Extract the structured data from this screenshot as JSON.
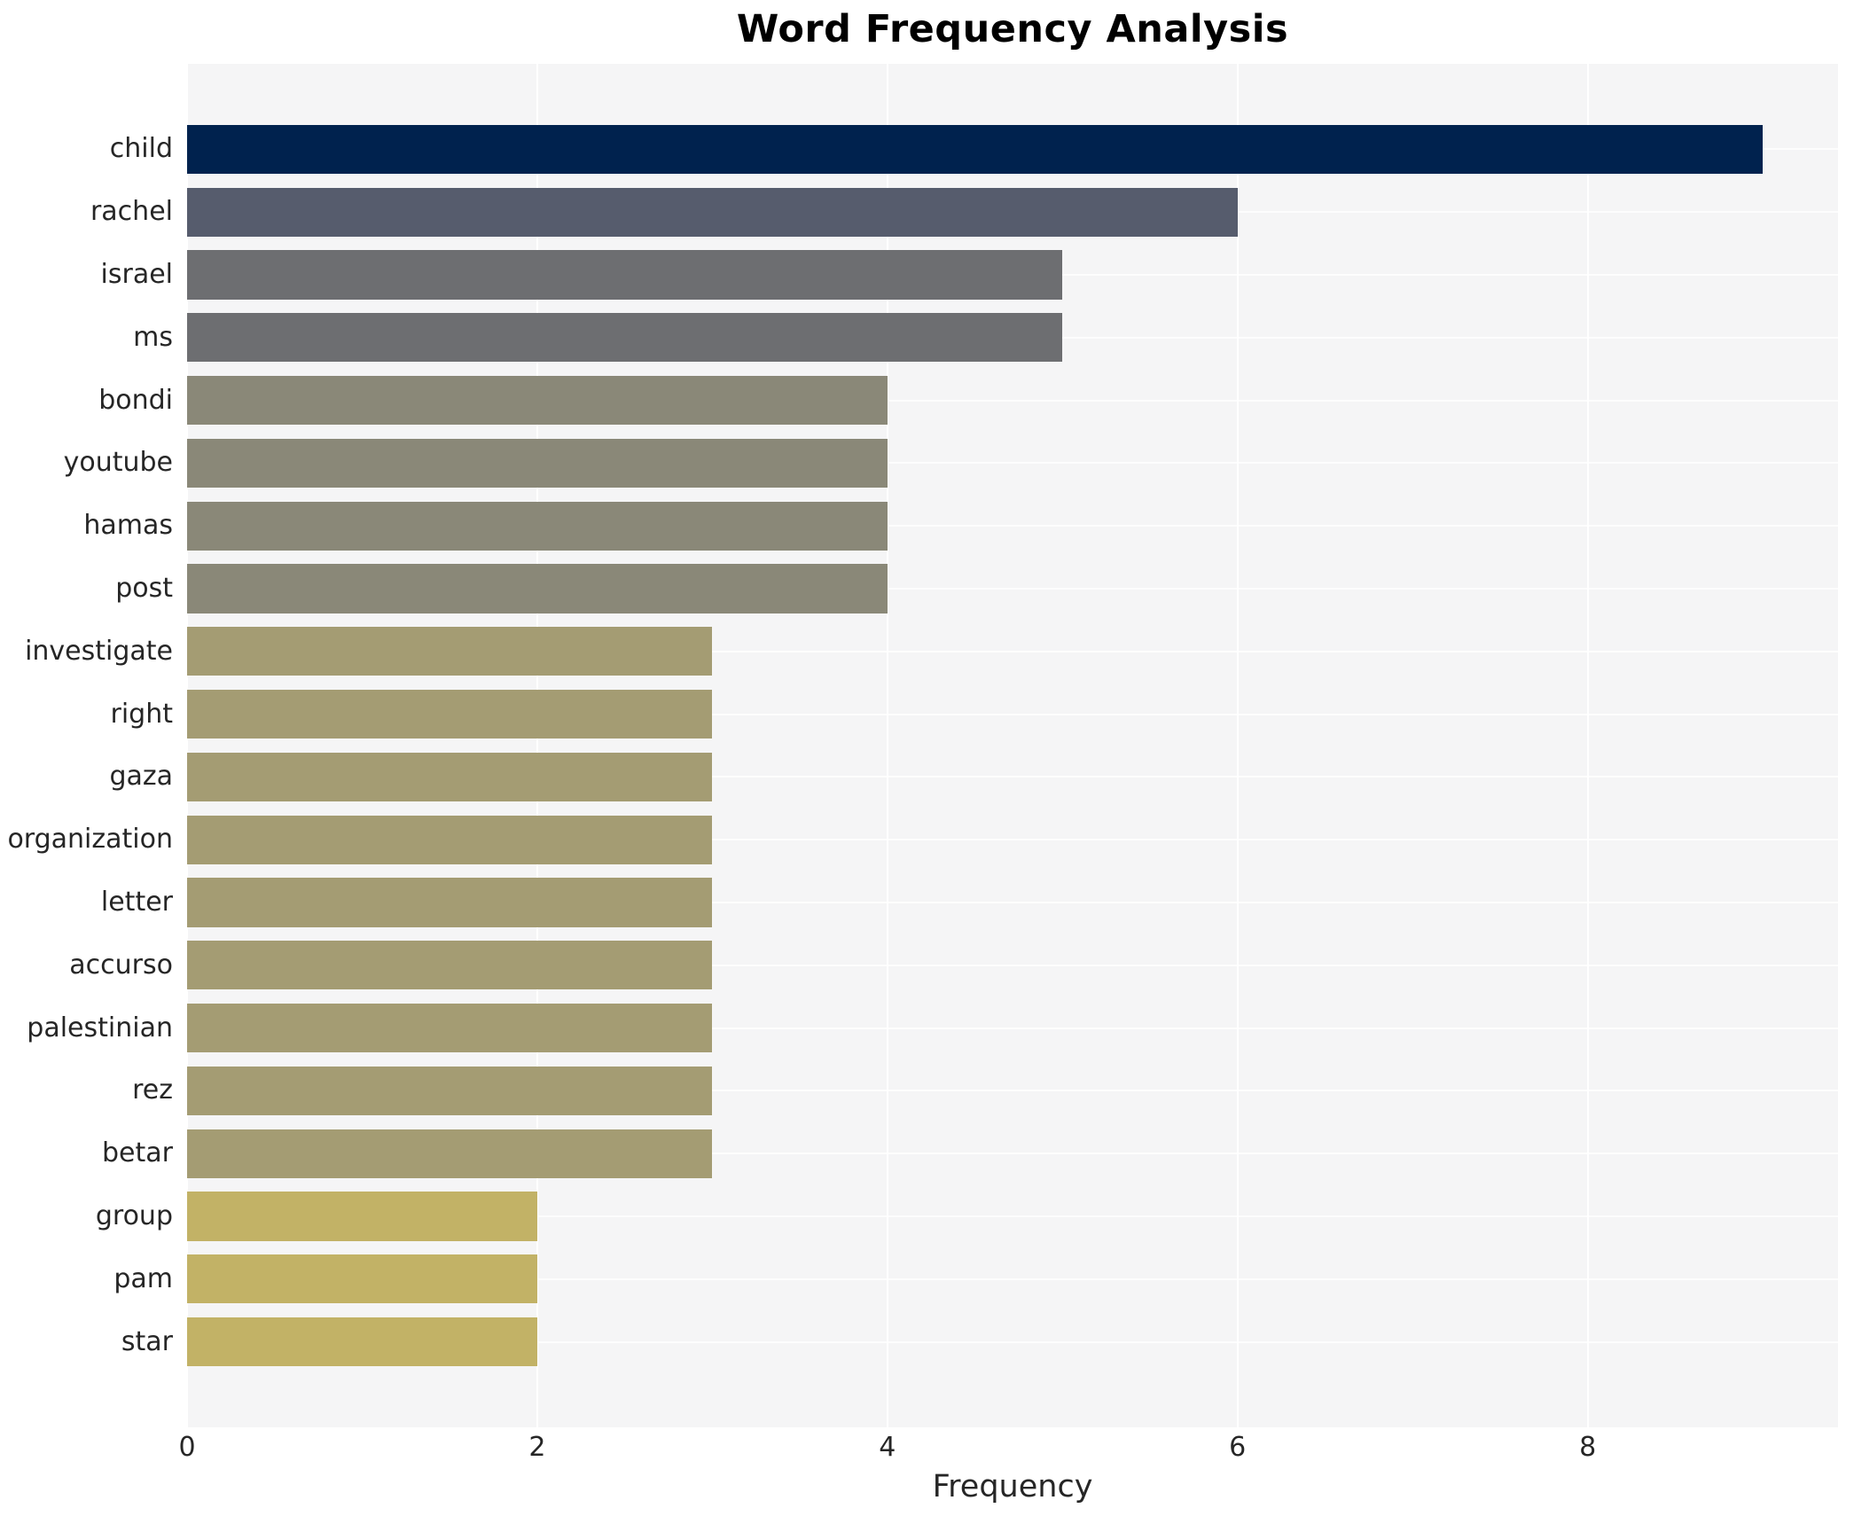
{
  "chart_data": {
    "type": "bar",
    "orientation": "horizontal",
    "title": "Word Frequency Analysis",
    "xlabel": "Frequency",
    "ylabel": "",
    "categories": [
      "child",
      "rachel",
      "israel",
      "ms",
      "bondi",
      "youtube",
      "hamas",
      "post",
      "investigate",
      "right",
      "gaza",
      "organization",
      "letter",
      "accurso",
      "palestinian",
      "rez",
      "betar",
      "group",
      "pam",
      "star"
    ],
    "values": [
      9,
      6,
      5,
      5,
      4,
      4,
      4,
      4,
      3,
      3,
      3,
      3,
      3,
      3,
      3,
      3,
      3,
      2,
      2,
      2
    ],
    "bar_colors": [
      "#00224e",
      "#565c6d",
      "#6d6e71",
      "#6d6e71",
      "#8a8878",
      "#8a8878",
      "#8a8878",
      "#8a8878",
      "#a49c73",
      "#a49c73",
      "#a49c73",
      "#a49c73",
      "#a49c73",
      "#a49c73",
      "#a49c73",
      "#a49c73",
      "#a49c73",
      "#c2b266",
      "#c2b266",
      "#c2b266"
    ],
    "xticks": [
      0,
      2,
      4,
      6,
      8
    ],
    "xlim": [
      0,
      9.43
    ],
    "grid": true,
    "legend_position": "none",
    "colors": {
      "plot_background": "#f5f5f6",
      "figure_background": "#ffffff",
      "gridline": "#ffffff",
      "text": "#262626",
      "title": "#000000"
    }
  }
}
